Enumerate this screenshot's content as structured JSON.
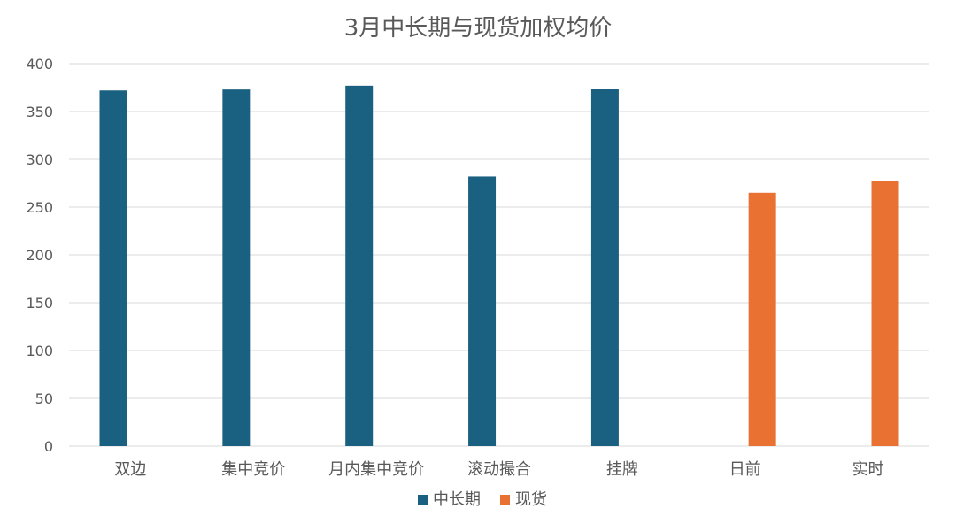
{
  "chart_data": {
    "type": "bar",
    "title": "3月中长期与现货加权均价",
    "xlabel": "",
    "ylabel": "",
    "ylim": [
      0,
      400
    ],
    "yticks": [
      0,
      50,
      100,
      150,
      200,
      250,
      300,
      350,
      400
    ],
    "grid": true,
    "legend_position": "bottom",
    "categories": [
      "双边",
      "集中竞价",
      "月内集中竞价",
      "滚动撮合",
      "挂牌",
      "日前",
      "实时"
    ],
    "series": [
      {
        "name": "中长期",
        "color": "#1a6080",
        "values": [
          372,
          373,
          377,
          282,
          374,
          null,
          null
        ]
      },
      {
        "name": "现货",
        "color": "#e97132",
        "values": [
          null,
          null,
          null,
          null,
          null,
          265,
          277
        ]
      }
    ]
  }
}
